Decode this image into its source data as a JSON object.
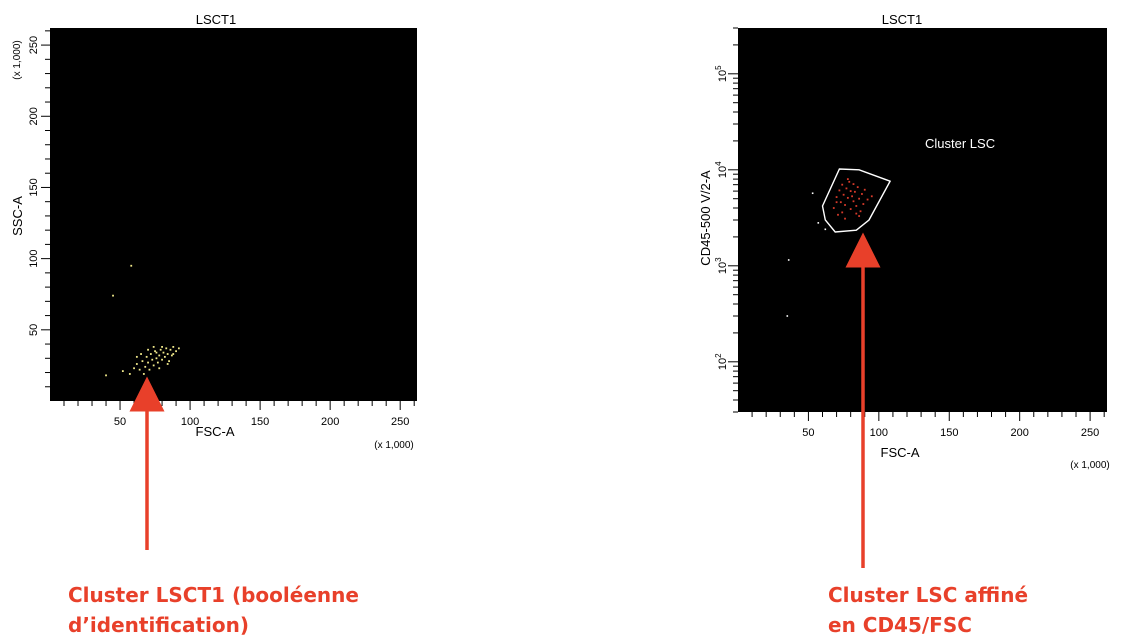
{
  "colors": {
    "plot_bg": "#000000",
    "arrow": "#e8402a",
    "caption": "#e8402a",
    "left_events": "#f0e88a",
    "right_events": "#d63a2a",
    "gate": "#ffffff"
  },
  "chart_data": [
    {
      "type": "scatter",
      "title": "LSCT1",
      "xlabel": "FSC-A",
      "ylabel": "SSC-A",
      "x_multiplier": "(x 1,000)",
      "y_multiplier": "(x 1,000)",
      "xlim": [
        0,
        262
      ],
      "ylim": [
        0,
        262
      ],
      "x_ticks": [
        50,
        100,
        150,
        200,
        250
      ],
      "y_ticks": [
        50,
        100,
        150,
        200,
        250
      ],
      "y_ticks_labeled": [
        50,
        100,
        150,
        200,
        250
      ],
      "grid": false,
      "points": [
        [
          40,
          18
        ],
        [
          52,
          21
        ],
        [
          57,
          19
        ],
        [
          60,
          23
        ],
        [
          62,
          26
        ],
        [
          64,
          22
        ],
        [
          66,
          28
        ],
        [
          68,
          24
        ],
        [
          69,
          31
        ],
        [
          70,
          27
        ],
        [
          71,
          22
        ],
        [
          72,
          33
        ],
        [
          73,
          29
        ],
        [
          74,
          25
        ],
        [
          75,
          35
        ],
        [
          76,
          30
        ],
        [
          77,
          27
        ],
        [
          78,
          32
        ],
        [
          79,
          36
        ],
        [
          80,
          29
        ],
        [
          81,
          34
        ],
        [
          82,
          31
        ],
        [
          83,
          37
        ],
        [
          84,
          33
        ],
        [
          85,
          28
        ],
        [
          86,
          36
        ],
        [
          87,
          32
        ],
        [
          88,
          38
        ],
        [
          90,
          35
        ],
        [
          92,
          37
        ],
        [
          65,
          33
        ],
        [
          67,
          19
        ],
        [
          74,
          38
        ],
        [
          78,
          23
        ],
        [
          62,
          31
        ],
        [
          70,
          36
        ],
        [
          84,
          26
        ],
        [
          76,
          34
        ],
        [
          80,
          38
        ],
        [
          88,
          33
        ],
        [
          45,
          74
        ],
        [
          58,
          95
        ]
      ]
    },
    {
      "type": "scatter",
      "title": "LSCT1",
      "xlabel": "FSC-A",
      "ylabel": "CD45-500 V/2-A",
      "x_multiplier": "(x 1,000)",
      "xlim": [
        0,
        262
      ],
      "y_scale": "log",
      "ylim": [
        30,
        300000
      ],
      "x_ticks": [
        50,
        100,
        150,
        200,
        250
      ],
      "y_decade_labels": [
        {
          "base": "10",
          "exp": "2",
          "value": 100
        },
        {
          "base": "10",
          "exp": "3",
          "value": 1000
        },
        {
          "base": "10",
          "exp": "4",
          "value": 10000
        },
        {
          "base": "10",
          "exp": "5",
          "value": 100000
        }
      ],
      "gate": {
        "label": "Cluster LSC",
        "polygon": [
          [
            60,
            4200
          ],
          [
            72,
            10200
          ],
          [
            86,
            10000
          ],
          [
            108,
            7600
          ],
          [
            93,
            3000
          ],
          [
            84,
            2350
          ],
          [
            69,
            2250
          ],
          [
            62,
            3000
          ]
        ]
      },
      "events_in_gate": [
        [
          68,
          4000
        ],
        [
          70,
          5200
        ],
        [
          72,
          6100
        ],
        [
          73,
          4600
        ],
        [
          74,
          7000
        ],
        [
          75,
          5500
        ],
        [
          76,
          4300
        ],
        [
          77,
          6400
        ],
        [
          78,
          5100
        ],
        [
          79,
          7500
        ],
        [
          80,
          3900
        ],
        [
          80,
          6000
        ],
        [
          81,
          5300
        ],
        [
          82,
          7100
        ],
        [
          82,
          4700
        ],
        [
          83,
          5900
        ],
        [
          84,
          4200
        ],
        [
          85,
          6600
        ],
        [
          86,
          5000
        ],
        [
          87,
          3700
        ],
        [
          88,
          5600
        ],
        [
          89,
          4400
        ],
        [
          90,
          6200
        ],
        [
          92,
          4900
        ],
        [
          95,
          5300
        ],
        [
          71,
          3400
        ],
        [
          76,
          3100
        ],
        [
          86,
          3300
        ],
        [
          78,
          8000
        ],
        [
          74,
          3600
        ],
        [
          84,
          3500
        ],
        [
          70,
          4600
        ]
      ],
      "events_outside": [
        [
          53,
          5700
        ],
        [
          57,
          2800
        ],
        [
          62,
          2400
        ],
        [
          36,
          1150
        ],
        [
          35,
          300
        ]
      ]
    }
  ],
  "captions": {
    "left_line1": "Cluster LSCT1 (booléenne",
    "left_line2": "d’identification)",
    "right_line1": "Cluster LSC affiné",
    "right_line2": "en CD45/FSC"
  }
}
